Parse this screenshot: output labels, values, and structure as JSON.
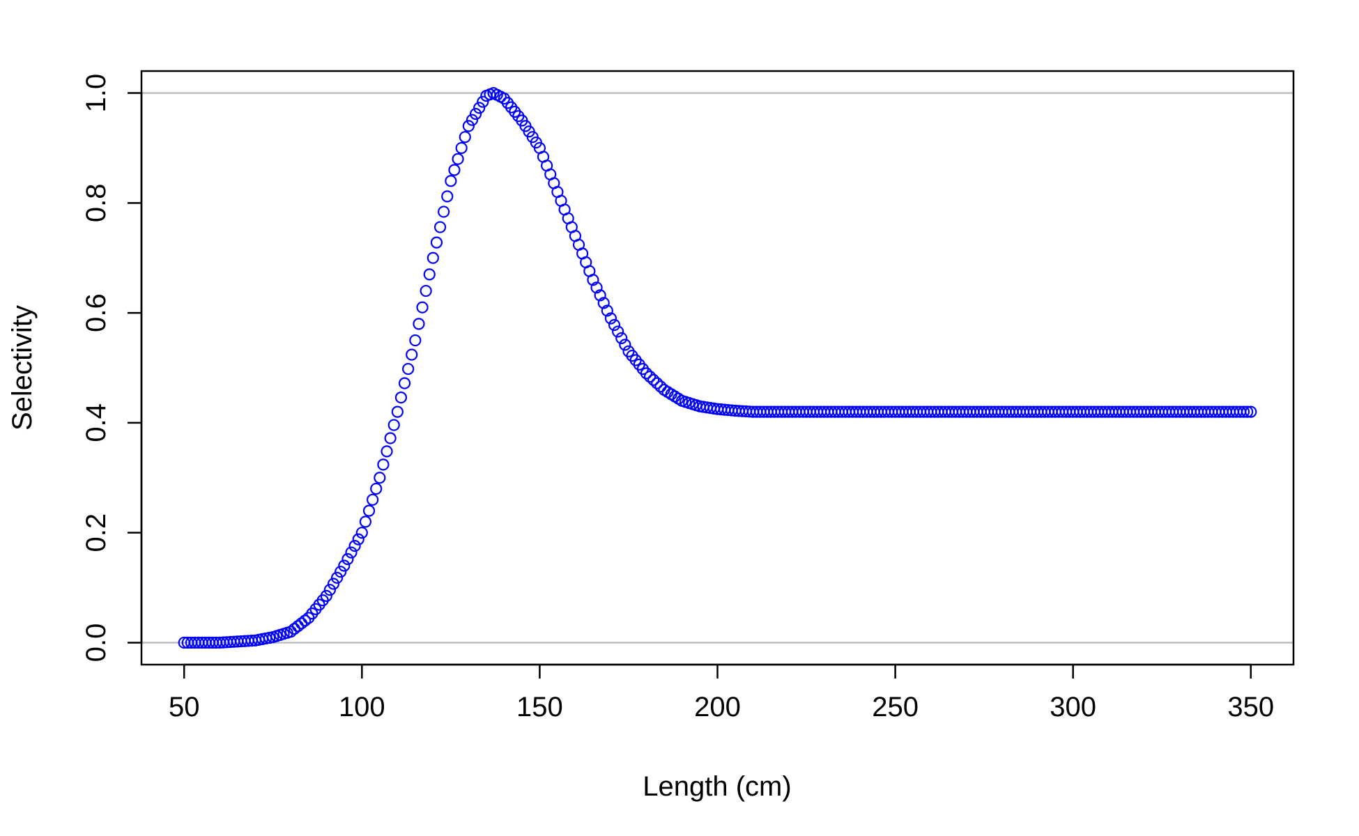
{
  "chart_data": {
    "type": "scatter",
    "title": "",
    "xlabel": "Length (cm)",
    "ylabel": "Selectivity",
    "xlim": [
      38,
      362
    ],
    "ylim": [
      -0.04,
      1.04
    ],
    "x_ticks": [
      50,
      100,
      150,
      200,
      250,
      300,
      350
    ],
    "y_ticks": [
      0.0,
      0.2,
      0.4,
      0.6,
      0.8,
      1.0
    ],
    "x_tick_labels": [
      "50",
      "100",
      "150",
      "200",
      "250",
      "300",
      "350"
    ],
    "y_tick_labels": [
      "0.0",
      "0.2",
      "0.4",
      "0.6",
      "0.8",
      "1.0"
    ],
    "reference_lines": [
      0.0,
      1.0
    ],
    "marker": "open-circle",
    "grid": false,
    "legend": "none",
    "x_step": 1,
    "series": [
      {
        "x": [
          50,
          60,
          70,
          75,
          80,
          85,
          90,
          95,
          100,
          105,
          110,
          115,
          120,
          125,
          130,
          135,
          137,
          140,
          145,
          150,
          155,
          160,
          165,
          170,
          175,
          180,
          185,
          190,
          195,
          200,
          205,
          210,
          220,
          230,
          250,
          275,
          300,
          325,
          350
        ],
        "values": [
          0.0,
          0.0,
          0.004,
          0.01,
          0.02,
          0.045,
          0.085,
          0.14,
          0.2,
          0.3,
          0.42,
          0.55,
          0.7,
          0.84,
          0.94,
          0.995,
          1.0,
          0.99,
          0.95,
          0.9,
          0.82,
          0.74,
          0.66,
          0.59,
          0.53,
          0.49,
          0.46,
          0.44,
          0.43,
          0.425,
          0.422,
          0.42,
          0.42,
          0.42,
          0.42,
          0.42,
          0.42,
          0.42,
          0.42
        ]
      }
    ]
  },
  "colors": {
    "points": "#0000ff",
    "reference_line": "#bebebe",
    "axes": "#000000",
    "background": "#ffffff"
  }
}
